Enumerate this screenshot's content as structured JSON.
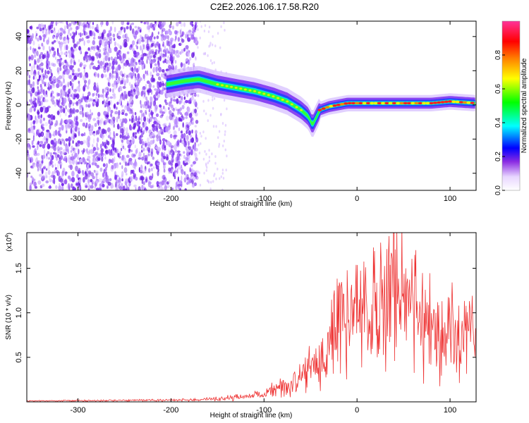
{
  "title": "C2E2.2026.106.17.58.R20",
  "colors": {
    "snr_line": "#ee3333",
    "spectral_noise": "#7a2df0",
    "frame": "#000000"
  },
  "chart_data": [
    {
      "type": "heatmap",
      "name": "spectrogram",
      "xlabel": "Height of straight line (km)",
      "ylabel": "Frequency (Hz)",
      "xlim": [
        -355,
        128
      ],
      "ylim": [
        -50,
        49
      ],
      "xticks": [
        -300,
        -200,
        -100,
        0,
        100
      ],
      "xtick_labels": [
        "-300",
        "-200",
        "-100",
        "0",
        "100"
      ],
      "yticks": [
        -40,
        -20,
        0,
        20,
        40
      ],
      "ytick_labels": [
        "-40",
        "-20",
        "0",
        "20",
        "40"
      ],
      "noise_region_x": [
        -355,
        -172
      ],
      "ridge": {
        "x": [
          -205,
          -185,
          -170,
          -150,
          -130,
          -110,
          -90,
          -75,
          -60,
          -52,
          -48,
          -40,
          -30,
          -20,
          -10,
          0,
          20,
          40,
          60,
          80,
          100,
          128
        ],
        "y": [
          12,
          14,
          15,
          12,
          10,
          8,
          5,
          2,
          -3,
          -7,
          -12,
          -3,
          -1,
          0,
          1,
          1,
          1,
          1,
          1,
          1,
          2,
          1
        ]
      },
      "colorbar": {
        "label": "Normalized spectral amplitude",
        "range": [
          0,
          1
        ],
        "ticks": [
          0.0,
          0.2,
          0.4,
          0.6,
          0.8
        ],
        "tick_labels": [
          "0.0",
          "0.2",
          "0.4",
          "0.6",
          "0.8"
        ]
      }
    },
    {
      "type": "line",
      "name": "snr",
      "xlabel": "Height of straight line (km)",
      "ylabel": "SNR (10 * v/v)",
      "yscale_label": "(x10",
      "yscale_exp": "4",
      "xlim": [
        -355,
        128
      ],
      "ylim": [
        0,
        1.9
      ],
      "xticks": [
        -300,
        -200,
        -100,
        0,
        100
      ],
      "xtick_labels": [
        "-300",
        "-200",
        "-100",
        "0",
        "100"
      ],
      "yticks": [
        0.5,
        1.0,
        1.5
      ],
      "ytick_labels": [
        "0.5",
        "1.0",
        "1.5"
      ],
      "envelope": {
        "x": [
          -355,
          -200,
          -160,
          -120,
          -100,
          -80,
          -60,
          -45,
          -30,
          -20,
          0,
          20,
          35,
          50,
          70,
          90,
          110,
          128
        ],
        "y": [
          0.01,
          0.02,
          0.03,
          0.06,
          0.1,
          0.18,
          0.28,
          0.45,
          0.7,
          0.95,
          1.05,
          1.2,
          1.35,
          1.2,
          1.0,
          0.88,
          0.82,
          0.8
        ]
      }
    }
  ]
}
